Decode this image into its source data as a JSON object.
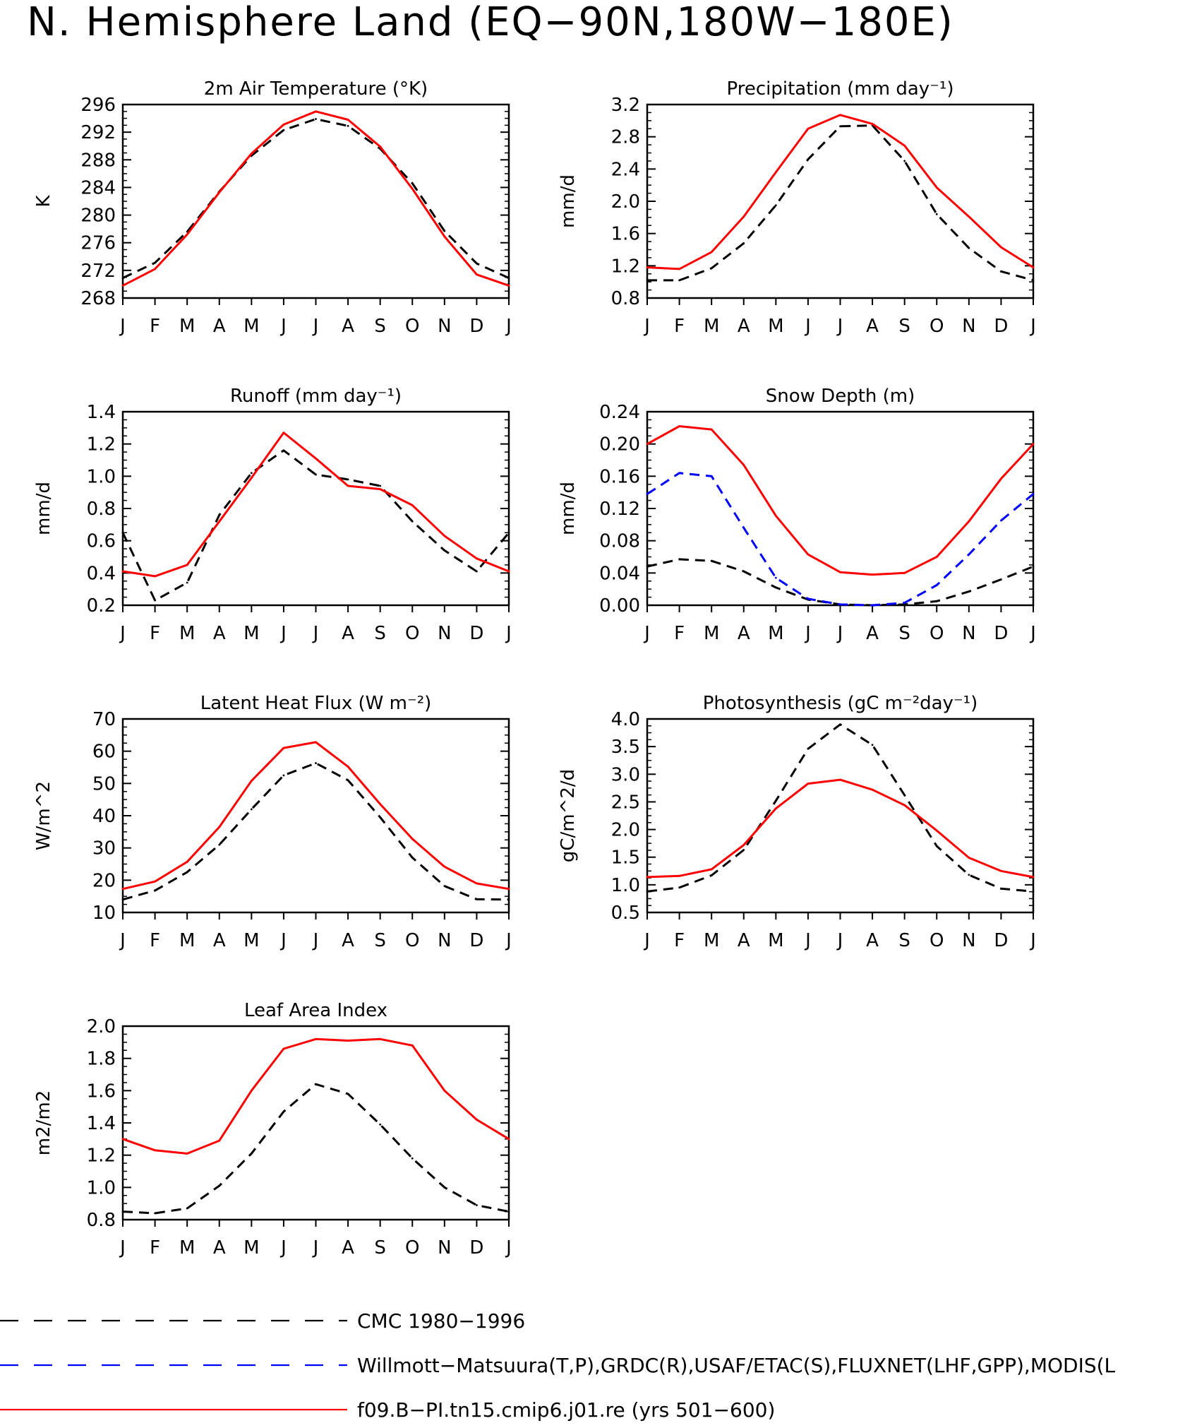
{
  "page_title": "N. Hemisphere Land (EQ−90N,180W−180E)",
  "months": [
    "J",
    "F",
    "M",
    "A",
    "M",
    "J",
    "J",
    "A",
    "S",
    "O",
    "N",
    "D",
    "J"
  ],
  "legend": [
    {
      "label": "CMC 1980−1996",
      "color": "#000000",
      "style": "dashed"
    },
    {
      "label": "Willmott−Matsuura(T,P),GRDC(R),USAF/ETAC(S),FLUXNET(LHF,GPP),MODIS(L",
      "color": "#0000ff",
      "style": "dashed"
    },
    {
      "label": "f09.B−PI.tn15.cmip6.j01.re (yrs 501−600)",
      "color": "#ff0000",
      "style": "solid"
    }
  ],
  "chart_data": [
    {
      "type": "line",
      "title": "2m Air Temperature (°K)",
      "xlabel": "",
      "ylabel": "K",
      "ylim": [
        268,
        296
      ],
      "yticks": [
        268,
        272,
        276,
        280,
        284,
        288,
        292,
        296
      ],
      "ytick_labels": [
        "268",
        "272",
        "276",
        "280",
        "284",
        "288",
        "292",
        "296"
      ],
      "series": [
        {
          "color": "#000000",
          "style": "dashed",
          "values": [
            270.9,
            273.1,
            277.6,
            283.4,
            288.6,
            292.3,
            293.9,
            292.9,
            289.6,
            284.6,
            277.7,
            273.0,
            270.9
          ]
        },
        {
          "color": "#ff0000",
          "style": "solid",
          "values": [
            269.8,
            272.2,
            277.2,
            283.3,
            288.9,
            293.1,
            295.0,
            293.8,
            289.9,
            283.8,
            276.9,
            271.4,
            269.8
          ]
        }
      ]
    },
    {
      "type": "line",
      "title": "Precipitation (mm day⁻¹)",
      "xlabel": "",
      "ylabel": "mm/d",
      "ylim": [
        0.8,
        3.2
      ],
      "yticks": [
        0.8,
        1.2,
        1.6,
        2.0,
        2.4,
        2.8,
        3.2
      ],
      "ytick_labels": [
        "0.8",
        "1.2",
        "1.6",
        "2.0",
        "2.4",
        "2.8",
        "3.2"
      ],
      "series": [
        {
          "color": "#000000",
          "style": "dashed",
          "values": [
            1.02,
            1.02,
            1.17,
            1.48,
            1.95,
            2.52,
            2.93,
            2.94,
            2.5,
            1.84,
            1.42,
            1.13,
            1.02
          ]
        },
        {
          "color": "#ff0000",
          "style": "solid",
          "values": [
            1.18,
            1.16,
            1.37,
            1.81,
            2.36,
            2.9,
            3.07,
            2.96,
            2.69,
            2.17,
            1.81,
            1.43,
            1.18
          ]
        }
      ]
    },
    {
      "type": "line",
      "title": "Runoff (mm day⁻¹)",
      "xlabel": "",
      "ylabel": "mm/d",
      "ylim": [
        0.2,
        1.4
      ],
      "yticks": [
        0.2,
        0.4,
        0.6,
        0.8,
        1.0,
        1.2,
        1.4
      ],
      "ytick_labels": [
        "0.2",
        "0.4",
        "0.6",
        "0.8",
        "1.0",
        "1.2",
        "1.4"
      ],
      "series": [
        {
          "color": "#000000",
          "style": "dashed",
          "values": [
            0.65,
            0.23,
            0.34,
            0.76,
            1.02,
            1.16,
            1.01,
            0.98,
            0.94,
            0.72,
            0.54,
            0.41,
            0.65
          ]
        },
        {
          "color": "#ff0000",
          "style": "solid",
          "values": [
            0.41,
            0.38,
            0.45,
            0.72,
            0.99,
            1.27,
            1.11,
            0.94,
            0.92,
            0.82,
            0.63,
            0.49,
            0.41
          ]
        }
      ]
    },
    {
      "type": "line",
      "title": "Snow Depth (m)",
      "xlabel": "",
      "ylabel": "mm/d",
      "ylim": [
        0.0,
        0.24
      ],
      "yticks": [
        0.0,
        0.04,
        0.08,
        0.12,
        0.16,
        0.2,
        0.24
      ],
      "ytick_labels": [
        "0.00",
        "0.04",
        "0.08",
        "0.12",
        "0.16",
        "0.20",
        "0.24"
      ],
      "series": [
        {
          "color": "#000000",
          "style": "dashed",
          "values": [
            0.048,
            0.057,
            0.055,
            0.042,
            0.022,
            0.007,
            0.001,
            0.0,
            0.001,
            0.005,
            0.017,
            0.032,
            0.048
          ]
        },
        {
          "color": "#0000ff",
          "style": "dashed",
          "values": [
            0.138,
            0.164,
            0.16,
            0.096,
            0.034,
            0.008,
            0.001,
            0.0,
            0.003,
            0.025,
            0.063,
            0.105,
            0.138
          ]
        },
        {
          "color": "#ff0000",
          "style": "solid",
          "values": [
            0.2,
            0.222,
            0.218,
            0.174,
            0.111,
            0.063,
            0.041,
            0.038,
            0.04,
            0.06,
            0.104,
            0.157,
            0.2
          ]
        }
      ]
    },
    {
      "type": "line",
      "title": "Latent Heat Flux (W m⁻²)",
      "xlabel": "",
      "ylabel": "W/m^2",
      "ylim": [
        10,
        70
      ],
      "yticks": [
        10,
        20,
        30,
        40,
        50,
        60,
        70
      ],
      "ytick_labels": [
        "10",
        "20",
        "30",
        "40",
        "50",
        "60",
        "70"
      ],
      "series": [
        {
          "color": "#000000",
          "style": "dashed",
          "values": [
            14.0,
            16.8,
            22.5,
            31.0,
            42.0,
            52.5,
            56.3,
            51.0,
            39.5,
            27.0,
            18.2,
            14.1,
            14.0
          ]
        },
        {
          "color": "#ff0000",
          "style": "solid",
          "values": [
            17.3,
            19.6,
            25.7,
            36.5,
            50.8,
            61.0,
            62.8,
            55.2,
            43.6,
            32.8,
            24.2,
            19.0,
            17.3
          ]
        }
      ]
    },
    {
      "type": "line",
      "title": "Photosynthesis (gC m⁻²day⁻¹)",
      "xlabel": "",
      "ylabel": "gC/m^2/d",
      "ylim": [
        0.5,
        4.0
      ],
      "yticks": [
        0.5,
        1.0,
        1.5,
        2.0,
        2.5,
        3.0,
        3.5,
        4.0
      ],
      "ytick_labels": [
        "0.5",
        "1.0",
        "1.5",
        "2.0",
        "2.5",
        "3.0",
        "3.5",
        "4.0"
      ],
      "series": [
        {
          "color": "#000000",
          "style": "dashed",
          "values": [
            0.88,
            0.95,
            1.17,
            1.63,
            2.52,
            3.46,
            3.9,
            3.53,
            2.62,
            1.7,
            1.18,
            0.93,
            0.88
          ]
        },
        {
          "color": "#ff0000",
          "style": "solid",
          "values": [
            1.14,
            1.16,
            1.28,
            1.72,
            2.38,
            2.83,
            2.9,
            2.72,
            2.44,
            1.98,
            1.49,
            1.25,
            1.14
          ]
        }
      ]
    },
    {
      "type": "line",
      "title": "Leaf Area Index",
      "xlabel": "",
      "ylabel": "m2/m2",
      "ylim": [
        0.8,
        2.0
      ],
      "yticks": [
        0.8,
        1.0,
        1.2,
        1.4,
        1.6,
        1.8,
        2.0
      ],
      "ytick_labels": [
        "0.8",
        "1.0",
        "1.2",
        "1.4",
        "1.6",
        "1.8",
        "2.0"
      ],
      "series": [
        {
          "color": "#000000",
          "style": "dashed",
          "values": [
            0.85,
            0.84,
            0.87,
            1.01,
            1.21,
            1.47,
            1.64,
            1.58,
            1.39,
            1.18,
            1.0,
            0.89,
            0.85
          ]
        },
        {
          "color": "#ff0000",
          "style": "solid",
          "values": [
            1.3,
            1.23,
            1.21,
            1.29,
            1.6,
            1.86,
            1.92,
            1.91,
            1.92,
            1.88,
            1.6,
            1.42,
            1.3
          ]
        }
      ]
    }
  ]
}
